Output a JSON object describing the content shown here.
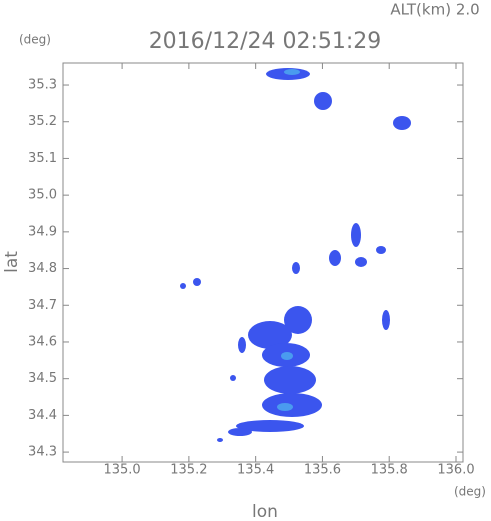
{
  "chart_data": {
    "type": "radar-map",
    "title": "2016/12/24 02:51:29",
    "subtitle": "ALT(km) 2.0",
    "x_label": "lon",
    "y_label": "lat",
    "x_unit": "(deg)",
    "y_unit": "(deg)",
    "xlim": [
      134.823,
      136.021
    ],
    "xticks": [
      {
        "value": 135.0,
        "label": "135.0"
      },
      135.2,
      135.4,
      135.6,
      135.8,
      {
        "value": 136.0,
        "label": "136.0"
      }
    ],
    "ylim": [
      34.273,
      35.36
    ],
    "yticks": [
      34.3,
      34.4,
      34.5,
      34.6,
      34.7,
      34.8,
      34.9,
      {
        "value": 35.0,
        "label": "35.0"
      },
      35.1,
      35.2,
      35.3
    ]
  }
}
